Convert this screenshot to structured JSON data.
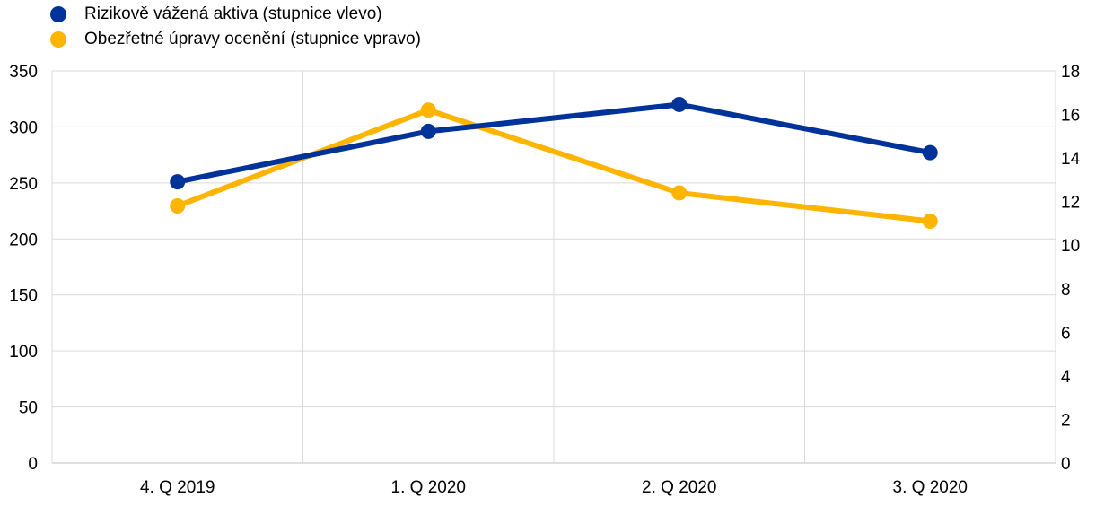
{
  "chart_data": {
    "type": "line",
    "categories": [
      "4. Q 2019",
      "1. Q 2020",
      "2. Q 2020",
      "3. Q 2020"
    ],
    "series": [
      {
        "name": "Rizikově vážená aktiva (stupnice vlevo)",
        "axis": "left",
        "color": "#003399",
        "values": [
          251,
          296,
          320,
          277
        ]
      },
      {
        "name": "Obezřetné úpravy ocenění (stupnice vpravo)",
        "axis": "right",
        "color": "#FFB400",
        "values": [
          11.8,
          16.2,
          12.4,
          11.1
        ]
      }
    ],
    "y_left": {
      "min": 0,
      "max": 350,
      "ticks": [
        0,
        50,
        100,
        150,
        200,
        250,
        300,
        350
      ]
    },
    "y_right": {
      "min": 0,
      "max": 18,
      "ticks": [
        0,
        2,
        4,
        6,
        8,
        10,
        12,
        14,
        16,
        18
      ]
    },
    "grid": true,
    "legend_position": "top-left"
  }
}
